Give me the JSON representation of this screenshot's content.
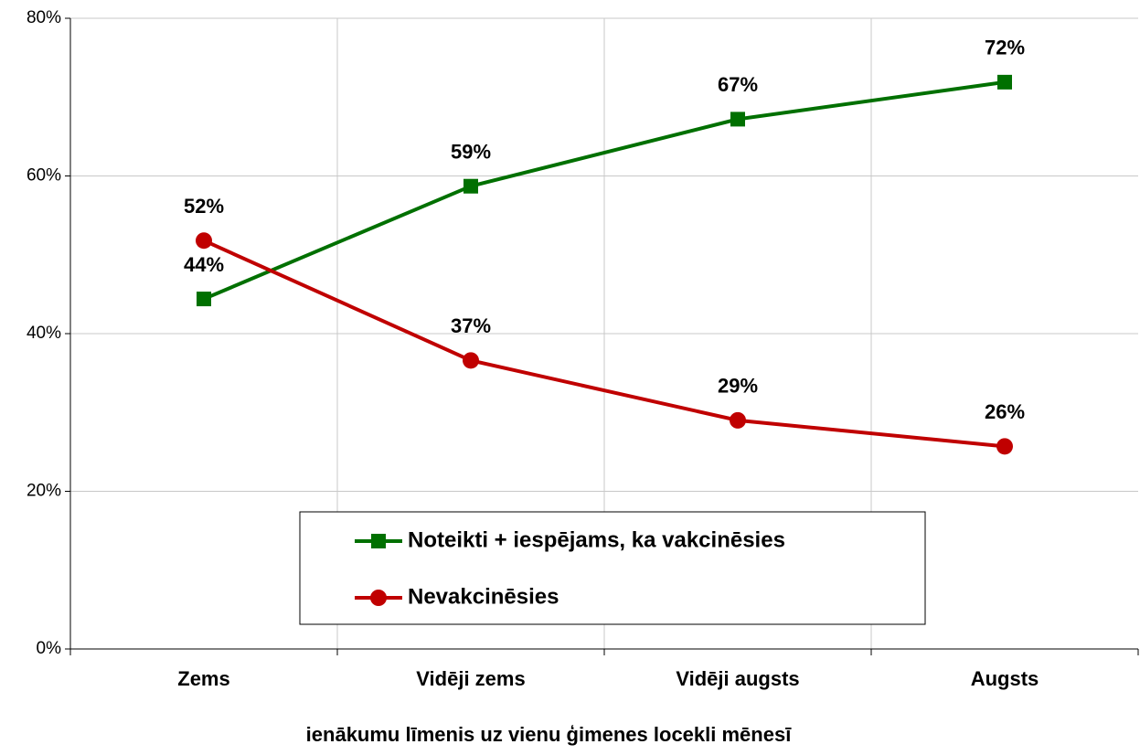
{
  "chart_data": {
    "type": "line",
    "x_label": "ienākumu līmenis uz vienu ģimenes locekli mēnesī",
    "categories": [
      "Zems",
      "Vidēji zems",
      "Vidēji augsts",
      "Augsts"
    ],
    "series": [
      {
        "name": "Noteikti + iespējams, ka vakcinēsies",
        "color": "#007000",
        "marker": "square",
        "values": [
          44.4,
          58.7,
          67.2,
          71.9
        ],
        "value_labels": [
          "44%",
          "59%",
          "67%",
          "72%"
        ]
      },
      {
        "name": "Nevakcinēsies",
        "color": "#c00000",
        "marker": "circle",
        "values": [
          51.8,
          36.6,
          29.0,
          25.7
        ],
        "value_labels": [
          "52%",
          "37%",
          "29%",
          "26%"
        ]
      }
    ],
    "ylim": [
      0,
      80
    ],
    "yticks": [
      {
        "value": 0,
        "label": "0%"
      },
      {
        "value": 20,
        "label": "20%"
      },
      {
        "value": 40,
        "label": "40%"
      },
      {
        "value": 60,
        "label": "60%"
      },
      {
        "value": 80,
        "label": "80%"
      }
    ],
    "grid": true
  }
}
